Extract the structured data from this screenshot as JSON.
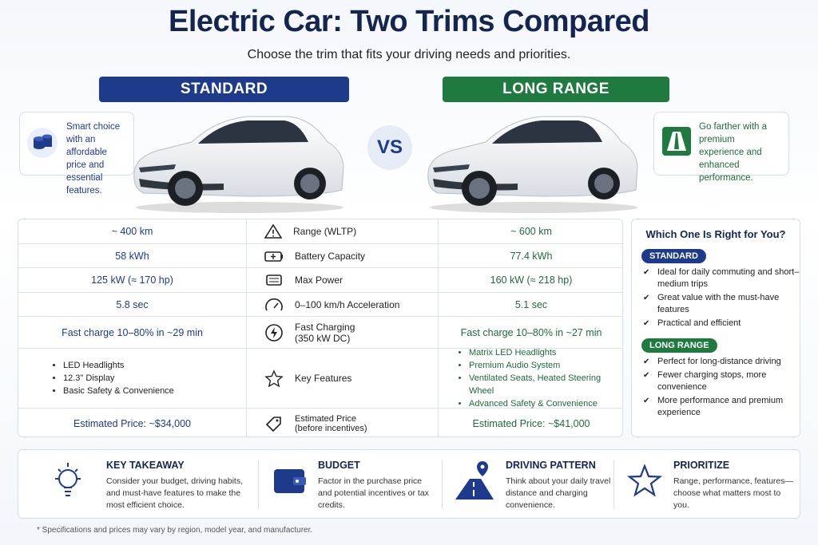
{
  "header": {
    "title": "Electric Car: Two Trims Compared",
    "subtitle": "Choose the trim that fits your driving needs and priorities."
  },
  "trims": [
    {
      "name": "STANDARD",
      "blurb": "Smart choice with an affordable price and essential features."
    },
    {
      "name": "LONG RANGE",
      "blurb": "Go farther with a premium experience and enhanced performance."
    }
  ],
  "vs": "VS",
  "table": {
    "rows": [
      {
        "standard": "~ 400 km",
        "spec": "Range (WLTP)",
        "long_range": "~ 600 km"
      },
      {
        "standard": "58 kWh",
        "spec": "Battery Capacity",
        "long_range": "77.4 kWh"
      },
      {
        "standard": "125 kW (≈ 170 hp)",
        "spec": "Max Power",
        "long_range": "160 kW (≈ 218 hp)"
      },
      {
        "standard": "5.8 sec",
        "spec": "0–100 km/h Acceleration",
        "long_range": "5.1 sec"
      },
      {
        "standard": "Fast charge 10–80% in ~29 min",
        "spec": "Fast Charging (350 kW DC)",
        "long_range": "Fast charge 10–80% in ~27 min"
      },
      {
        "standard": [
          "LED Headlights",
          "12.3\" Display",
          "Basic Safety & Convenience"
        ],
        "spec": "Key Features",
        "long_range": [
          "Matrix LED Headlights",
          "Premium Audio System",
          "Ventilated Seats, Heated Steering Wheel",
          "Advanced Safety & Convenience"
        ]
      },
      {
        "standard": "Estimated Price: ~$34,000",
        "spec": "Estimated Price (before incentives)",
        "long_range": "Estimated Price: ~$41,000"
      }
    ]
  },
  "advice": {
    "title": "Which One Is Right for You?",
    "groups": [
      {
        "tag": "STANDARD",
        "items": [
          "Ideal for daily commuting and short–medium trips",
          "Great value with the must-have features",
          "Practical and efficient"
        ]
      },
      {
        "tag": "LONG RANGE",
        "items": [
          "Perfect for long-distance driving",
          "Fewer charging stops, more convenience",
          "More performance and premium experience"
        ]
      }
    ]
  },
  "tips": [
    {
      "title": "KEY TAKEAWAY",
      "text": "Consider your budget, driving habits, and must-have features to make the most efficient choice."
    },
    {
      "title": "BUDGET",
      "text": "Factor in the purchase price and potential incentives or tax credits."
    },
    {
      "title": "DRIVING PATTERN",
      "text": "Think about your daily travel distance and charging convenience."
    },
    {
      "title": "PRIORITIZE",
      "text": "Range, performance, features—choose what matters most to you."
    }
  ],
  "footnote": "* Specifications and prices may vary by region, model year, and manufacturer."
}
